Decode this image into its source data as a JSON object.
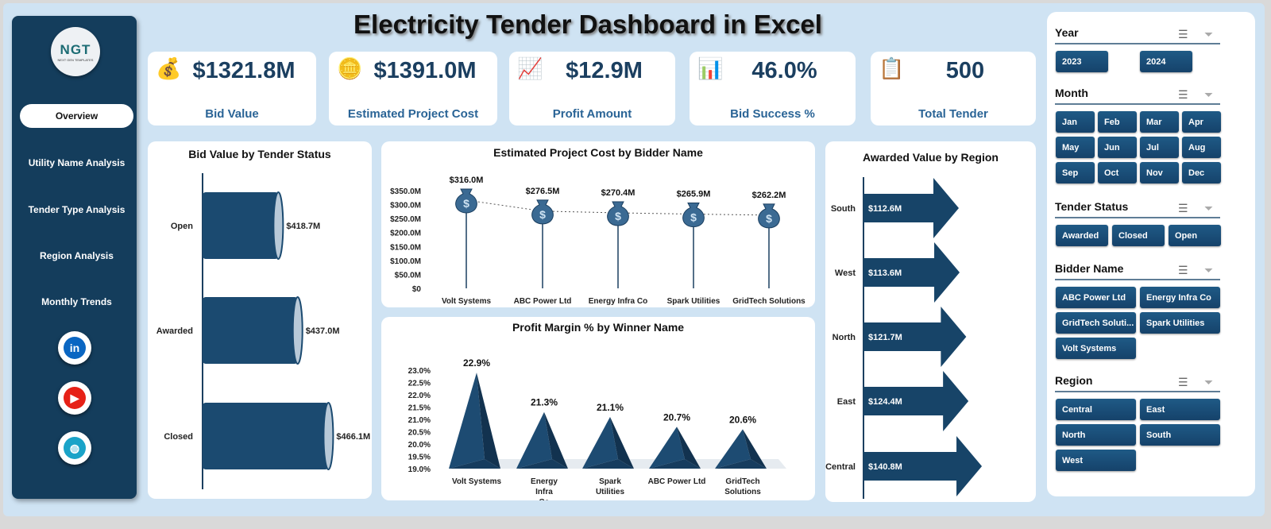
{
  "title": "Electricity Tender Dashboard in Excel",
  "logo": {
    "text": "NGT",
    "sub": "NEXT GEN TEMPLATES"
  },
  "nav": [
    {
      "label": "Overview",
      "active": true
    },
    {
      "label": "Utility Name Analysis"
    },
    {
      "label": "Tender Type Analysis"
    },
    {
      "label": "Region Analysis"
    },
    {
      "label": "Monthly Trends"
    }
  ],
  "social": [
    {
      "icon": "linkedin-icon",
      "label": "in",
      "color": "#0a66c2"
    },
    {
      "icon": "youtube-icon",
      "label": "▶",
      "color": "#e62117"
    },
    {
      "icon": "globe-icon",
      "label": "◍",
      "color": "#1aa3c8"
    }
  ],
  "kpis": [
    {
      "value": "$1321.8M",
      "label": "Bid Value",
      "icon": "money-bag-hand-icon"
    },
    {
      "value": "$1391.0M",
      "label": "Estimated Project Cost",
      "icon": "coins-cash-icon"
    },
    {
      "value": "$12.9M",
      "label": "Profit Amount",
      "icon": "profit-growth-icon"
    },
    {
      "value": "46.0%",
      "label": "Bid Success %",
      "icon": "success-chart-icon"
    },
    {
      "value": "500",
      "label": "Total Tender",
      "icon": "document-check-icon"
    }
  ],
  "chart_data": [
    {
      "type": "bar",
      "orientation": "horizontal",
      "title": "Bid Value by Tender Status",
      "categories": [
        "Open",
        "Awarded",
        "Closed"
      ],
      "values": [
        418.7,
        437.0,
        466.1
      ],
      "labels": [
        "$418.7M",
        "$437.0M",
        "$466.1M"
      ],
      "unit": "$M",
      "color": "#1b4a70"
    },
    {
      "type": "line",
      "title": "Estimated Project Cost by Bidder Name",
      "categories": [
        "Volt Systems",
        "ABC Power Ltd",
        "Energy Infra Co",
        "Spark Utilities",
        "GridTech Solutions"
      ],
      "values": [
        316.0,
        276.5,
        270.4,
        265.9,
        262.2
      ],
      "labels": [
        "$316.0M",
        "$276.5M",
        "$270.4M",
        "$265.9M",
        "$262.2M"
      ],
      "yticks": [
        "$0",
        "$50.0M",
        "$100.0M",
        "$150.0M",
        "$200.0M",
        "$250.0M",
        "$300.0M",
        "$350.0M"
      ],
      "ylim": [
        0,
        350
      ],
      "marker": "money-bag-icon"
    },
    {
      "type": "bar",
      "shape": "pyramid",
      "title": "Profit Margin % by Winner Name",
      "categories": [
        "Volt Systems",
        "Energy Infra Co",
        "Spark Utilities",
        "ABC Power Ltd",
        "GridTech Solutions"
      ],
      "values": [
        22.9,
        21.3,
        21.1,
        20.7,
        20.6
      ],
      "labels": [
        "22.9%",
        "21.3%",
        "21.1%",
        "20.7%",
        "20.6%"
      ],
      "yticks": [
        "19.0%",
        "19.5%",
        "20.0%",
        "20.5%",
        "21.0%",
        "21.5%",
        "22.0%",
        "22.5%",
        "23.0%"
      ],
      "ylim": [
        19.0,
        23.0
      ]
    },
    {
      "type": "bar",
      "orientation": "horizontal",
      "shape": "arrow",
      "title": "Awarded Value by Region",
      "categories": [
        "South",
        "West",
        "North",
        "East",
        "Central"
      ],
      "values": [
        112.6,
        113.6,
        121.7,
        124.4,
        140.8
      ],
      "labels": [
        "$112.6M",
        "$113.6M",
        "$121.7M",
        "$124.4M",
        "$140.8M"
      ]
    }
  ],
  "slicers": [
    {
      "title": "Year",
      "items": [
        "2023",
        "2024"
      ]
    },
    {
      "title": "Month",
      "items": [
        "Jan",
        "Feb",
        "Mar",
        "Apr",
        "May",
        "Jun",
        "Jul",
        "Aug",
        "Sep",
        "Oct",
        "Nov",
        "Dec"
      ]
    },
    {
      "title": "Tender Status",
      "items": [
        "Awarded",
        "Closed",
        "Open"
      ]
    },
    {
      "title": "Bidder Name",
      "items": [
        "ABC Power Ltd",
        "Energy Infra Co",
        "GridTech Soluti...",
        "Spark Utilities",
        "Volt Systems"
      ]
    },
    {
      "title": "Region",
      "items": [
        "Central",
        "East",
        "North",
        "South",
        "West"
      ]
    }
  ]
}
